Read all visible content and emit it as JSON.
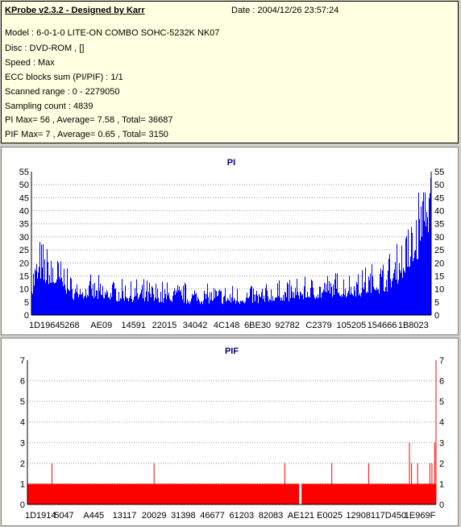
{
  "info": {
    "title": "KProbe v2.3.2 - Designed by Karr",
    "date": "Date : 2004/12/26 23:57:24",
    "model": "Model : 6-0-1-0 LITE-ON COMBO SOHC-5232K NK07",
    "disc": "Disc : DVD-ROM ,  []",
    "speed": "Speed : Max",
    "ecc": "ECC blocks sum (PI/PIF) : 1/1",
    "range": "Scanned range : 0 - 2279050",
    "sampling": "Sampling count : 4839",
    "pi_stats": "PI Max= 56 , Average= 7.58 , Total= 36687",
    "pif_stats": "PIF Max= 7 , Average= 0.65 , Total= 3150"
  },
  "colors": {
    "pi": "#0000ff",
    "pif": "#ff0000",
    "background": "#d4d0c8",
    "info_bg": "#ffffe1"
  },
  "chart_data": [
    {
      "type": "bar",
      "title": "PI",
      "ylim": [
        0,
        55
      ],
      "yticks": [
        0,
        5,
        10,
        15,
        20,
        25,
        30,
        35,
        40,
        45,
        50,
        55
      ],
      "grid": true,
      "xtick_labels": [
        "1D1964",
        "5268",
        "AE09",
        "14591",
        "22015",
        "34042",
        "4C148",
        "6BE30",
        "92782",
        "C2379",
        "105205",
        "154666",
        "1B8023"
      ],
      "profile": {
        "x_fraction": [
          0,
          0.02,
          0.08,
          0.1,
          0.25,
          0.4,
          0.55,
          0.7,
          0.8,
          0.85,
          0.9,
          0.95,
          0.98,
          1.0
        ],
        "typical": [
          8,
          14,
          11,
          7,
          6,
          5,
          5,
          7,
          8,
          9,
          11,
          18,
          30,
          40
        ],
        "peak": [
          25,
          30,
          22,
          15,
          14,
          13,
          12,
          15,
          18,
          20,
          25,
          40,
          56,
          50
        ]
      }
    },
    {
      "type": "bar",
      "title": "PIF",
      "ylim": [
        0,
        7
      ],
      "yticks": [
        0,
        1,
        2,
        3,
        4,
        5,
        6,
        7
      ],
      "grid": true,
      "xtick_labels": [
        "1D1914",
        "5047",
        "A445",
        "13117",
        "20029",
        "31398",
        "46677",
        "61203",
        "82083",
        "AE121",
        "E0025",
        "129081",
        "17D450",
        "1E969F"
      ],
      "baseline": 1,
      "gap_x_fraction": 0.665,
      "spikes": [
        {
          "x_fraction": 0.06,
          "value": 2
        },
        {
          "x_fraction": 0.31,
          "value": 2
        },
        {
          "x_fraction": 0.63,
          "value": 2
        },
        {
          "x_fraction": 0.745,
          "value": 2
        },
        {
          "x_fraction": 0.835,
          "value": 2
        },
        {
          "x_fraction": 0.935,
          "value": 3
        },
        {
          "x_fraction": 0.94,
          "value": 2
        },
        {
          "x_fraction": 0.955,
          "value": 2
        },
        {
          "x_fraction": 0.985,
          "value": 2
        },
        {
          "x_fraction": 0.99,
          "value": 2
        },
        {
          "x_fraction": 0.997,
          "value": 3
        },
        {
          "x_fraction": 1.0,
          "value": 7
        }
      ]
    }
  ]
}
